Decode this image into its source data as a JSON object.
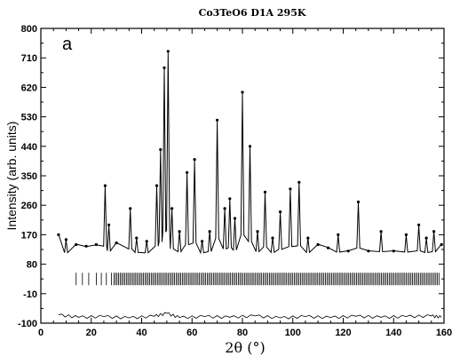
{
  "chart_data": {
    "type": "line",
    "title": "Co3TeO6 D1A 295K",
    "panel_label": "a",
    "xlabel": "2θ (°)",
    "ylabel": "Intensity (arb. units)",
    "xlim": [
      0,
      160
    ],
    "ylim": [
      -100,
      800
    ],
    "x_ticks": [
      0,
      20,
      40,
      60,
      80,
      100,
      120,
      140,
      160
    ],
    "y_ticks": [
      -100,
      -10,
      80,
      170,
      260,
      350,
      440,
      530,
      620,
      710,
      800
    ],
    "grid": false,
    "legend": "none",
    "background_level": 110,
    "series": [
      {
        "role": "observed",
        "style": "points",
        "x": [
          7,
          10,
          14,
          18,
          22,
          25.5,
          27,
          30,
          35.5,
          38,
          42,
          46,
          47.5,
          49,
          50.5,
          52,
          55,
          58,
          61,
          64,
          67,
          70,
          73,
          75,
          77,
          80,
          83,
          86,
          89,
          92,
          95,
          99,
          102.5,
          106,
          110,
          114,
          118,
          122,
          126,
          130,
          135,
          140,
          145,
          150,
          153,
          156,
          159
        ],
        "y": [
          170,
          155,
          140,
          135,
          140,
          320,
          200,
          145,
          250,
          160,
          150,
          320,
          430,
          680,
          730,
          250,
          180,
          360,
          400,
          150,
          180,
          520,
          250,
          280,
          220,
          605,
          440,
          180,
          300,
          160,
          240,
          310,
          330,
          160,
          140,
          130,
          170,
          120,
          270,
          120,
          180,
          120,
          170,
          200,
          160,
          180,
          140
        ]
      },
      {
        "role": "calculated",
        "style": "line",
        "x": [
          7,
          10,
          14,
          18,
          22,
          25.5,
          27,
          30,
          35.5,
          38,
          42,
          46,
          47.5,
          49,
          50.5,
          52,
          55,
          58,
          61,
          64,
          67,
          70,
          73,
          75,
          77,
          80,
          83,
          86,
          89,
          92,
          95,
          99,
          102.5,
          106,
          110,
          114,
          118,
          122,
          126,
          130,
          135,
          140,
          145,
          150,
          153,
          156,
          159
        ],
        "y": [
          172,
          154,
          141,
          134,
          139,
          318,
          198,
          146,
          248,
          159,
          151,
          318,
          428,
          678,
          726,
          248,
          181,
          358,
          398,
          151,
          181,
          518,
          249,
          278,
          221,
          602,
          438,
          181,
          298,
          161,
          239,
          308,
          328,
          161,
          141,
          131,
          169,
          121,
          268,
          121,
          179,
          121,
          169,
          198,
          159,
          179,
          141
        ]
      },
      {
        "role": "difference",
        "style": "line",
        "x": [
          7,
          15,
          25,
          35,
          45,
          50,
          55,
          65,
          75,
          85,
          95,
          105,
          115,
          125,
          135,
          145,
          155,
          159
        ],
        "y": [
          -75,
          -82,
          -80,
          -84,
          -79,
          -70,
          -83,
          -80,
          -82,
          -78,
          -84,
          -80,
          -83,
          -79,
          -82,
          -80,
          -78,
          -82
        ]
      }
    ],
    "bragg_ticks": {
      "y_center": 35,
      "segment_1": {
        "from": 14,
        "to": 19,
        "count": 3
      },
      "segment_2": {
        "from": 22,
        "to": 28,
        "count": 4
      },
      "segment_3": {
        "from": 29,
        "to": 158,
        "count": 210
      }
    }
  }
}
